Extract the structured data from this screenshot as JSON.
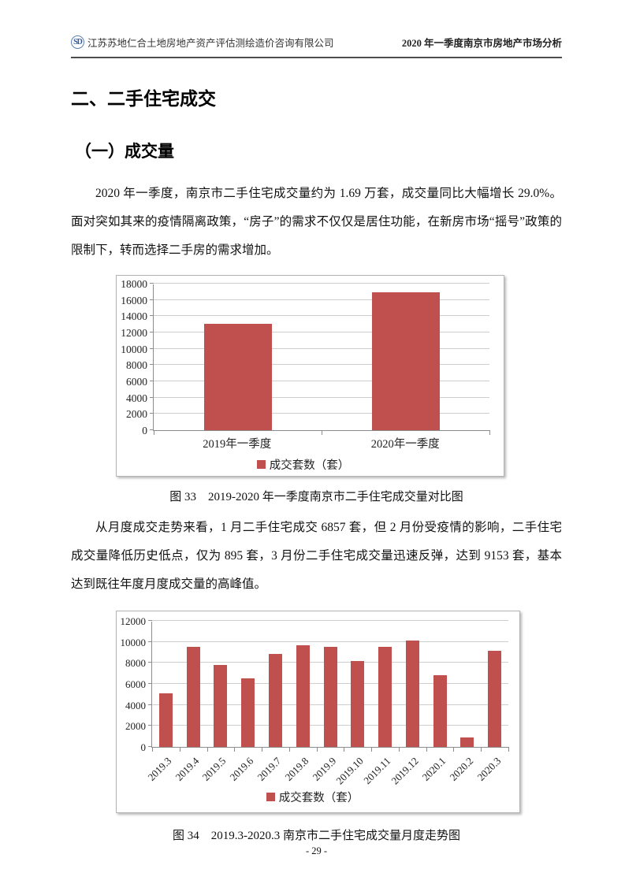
{
  "header": {
    "logo_text": "SD",
    "company": "江苏苏地仁合土地房地产资产评估测绘造价咨询有限公司",
    "report_title": "2020 年一季度南京市房地产市场分析"
  },
  "headings": {
    "section": "二、二手住宅成交",
    "subsection": "（一）成交量"
  },
  "paragraphs": {
    "p1": "2020 年一季度，南京市二手住宅成交量约为 1.69 万套，成交量同比大幅增长 29.0%。面对突如其来的疫情隔离政策，“房子”的需求不仅仅是居住功能，在新房市场“摇号”政策的限制下，转而选择二手房的需求增加。",
    "p2": "从月度成交走势来看，1 月二手住宅成交 6857 套，但 2 月份受疫情的影响，二手住宅成交量降低历史低点，仅为 895 套，3 月份二手住宅成交量迅速反弹，达到 9153 套，基本达到既往年度月度成交量的高峰值。"
  },
  "captions": {
    "fig33": "图 33　2019-2020 年一季度南京市二手住宅成交量对比图",
    "fig34": "图 34　2019.3-2020.3 南京市二手住宅成交量月度走势图"
  },
  "page_number": "- 29 -",
  "chart_data": [
    {
      "type": "bar",
      "title": "图33 2019-2020年一季度南京市二手住宅成交量对比图",
      "categories": [
        "2019年一季度",
        "2020年一季度"
      ],
      "values": [
        13100,
        16900
      ],
      "legend": "成交套数（套）",
      "xlabel": "",
      "ylabel": "",
      "ylim": [
        0,
        18000
      ],
      "ytick_step": 2000,
      "bar_color": "#c0504d",
      "grid": true,
      "legend_position": "bottom"
    },
    {
      "type": "bar",
      "title": "图34 2019.3-2020.3南京市二手住宅成交量月度走势图",
      "categories": [
        "2019.3",
        "2019.4",
        "2019.5",
        "2019.6",
        "2019.7",
        "2019.8",
        "2019.9",
        "2019.10",
        "2019.11",
        "2019.12",
        "2020.1",
        "2020.2",
        "2020.3"
      ],
      "values": [
        5100,
        9500,
        7800,
        6550,
        8850,
        9700,
        9550,
        8150,
        9550,
        10150,
        6857,
        895,
        9153
      ],
      "legend": "成交套数（套）",
      "xlabel": "",
      "ylabel": "",
      "ylim": [
        0,
        12000
      ],
      "ytick_step": 2000,
      "bar_color": "#c0504d",
      "grid": true,
      "legend_position": "bottom",
      "xtick_rotation": -45
    }
  ]
}
